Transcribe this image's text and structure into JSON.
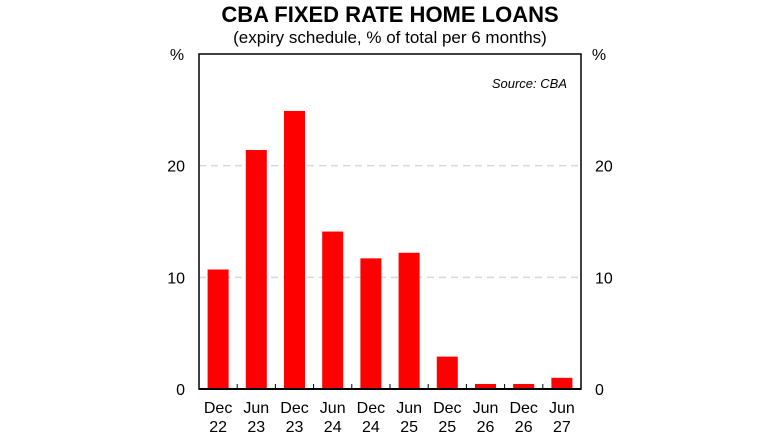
{
  "chart_data": {
    "type": "bar",
    "title": "CBA FIXED RATE HOME LOANS",
    "subtitle": "(expiry schedule, % of total per 6 months)",
    "ylabel_left": "%",
    "ylabel_right": "%",
    "annotation": "Source: CBA",
    "categories": [
      [
        "Dec",
        "22"
      ],
      [
        "Jun",
        "23"
      ],
      [
        "Dec",
        "23"
      ],
      [
        "Jun",
        "24"
      ],
      [
        "Dec",
        "24"
      ],
      [
        "Jun",
        "25"
      ],
      [
        "Dec",
        "25"
      ],
      [
        "Jun",
        "26"
      ],
      [
        "Dec",
        "26"
      ],
      [
        "Jun",
        "27"
      ]
    ],
    "values": [
      10.7,
      21.4,
      24.9,
      14.1,
      11.7,
      12.2,
      2.9,
      0.45,
      0.45,
      1.0
    ],
    "ylim": [
      0,
      30
    ],
    "yticks": [
      0,
      10,
      20
    ],
    "grid": true,
    "bar_color": "#ff0000",
    "grid_color": "#d9d9d9"
  }
}
